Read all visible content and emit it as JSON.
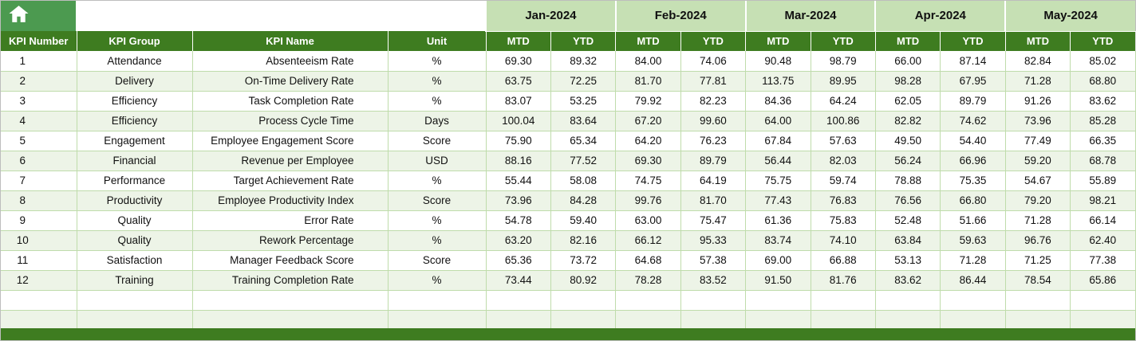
{
  "app": {
    "type": "spreadsheet-kpi-dashboard"
  },
  "colors": {
    "header_green": "#3E7C20",
    "month_green": "#C6E0B4",
    "home_green": "#4C9A50",
    "stripe_green": "#EDF4E7",
    "grid_border": "#BFDCAB",
    "text_dark": "#111111"
  },
  "header": {
    "home_icon": "home-icon",
    "months": [
      "Jan-2024",
      "Feb-2024",
      "Mar-2024",
      "Apr-2024",
      "May-2024"
    ],
    "sub_headers": [
      "MTD",
      "YTD"
    ],
    "left_columns": [
      "KPI Number",
      "KPI Group",
      "KPI Name",
      "Unit"
    ]
  },
  "rows": [
    {
      "number": "1",
      "group": "Attendance",
      "name": "Absenteeism Rate",
      "unit": "%",
      "values": [
        "69.30",
        "89.32",
        "84.00",
        "74.06",
        "90.48",
        "98.79",
        "66.00",
        "87.14",
        "82.84",
        "85.02"
      ]
    },
    {
      "number": "2",
      "group": "Delivery",
      "name": "On-Time Delivery Rate",
      "unit": "%",
      "values": [
        "63.75",
        "72.25",
        "81.70",
        "77.81",
        "113.75",
        "89.95",
        "98.28",
        "67.95",
        "71.28",
        "68.80"
      ]
    },
    {
      "number": "3",
      "group": "Efficiency",
      "name": "Task Completion Rate",
      "unit": "%",
      "values": [
        "83.07",
        "53.25",
        "79.92",
        "82.23",
        "84.36",
        "64.24",
        "62.05",
        "89.79",
        "91.26",
        "83.62"
      ]
    },
    {
      "number": "4",
      "group": "Efficiency",
      "name": "Process Cycle Time",
      "unit": "Days",
      "values": [
        "100.04",
        "83.64",
        "67.20",
        "99.60",
        "64.00",
        "100.86",
        "82.82",
        "74.62",
        "73.96",
        "85.28"
      ]
    },
    {
      "number": "5",
      "group": "Engagement",
      "name": "Employee Engagement Score",
      "unit": "Score",
      "values": [
        "75.90",
        "65.34",
        "64.20",
        "76.23",
        "67.84",
        "57.63",
        "49.50",
        "54.40",
        "77.49",
        "66.35"
      ]
    },
    {
      "number": "6",
      "group": "Financial",
      "name": "Revenue per Employee",
      "unit": "USD",
      "values": [
        "88.16",
        "77.52",
        "69.30",
        "89.79",
        "56.44",
        "82.03",
        "56.24",
        "66.96",
        "59.20",
        "68.78"
      ]
    },
    {
      "number": "7",
      "group": "Performance",
      "name": "Target Achievement Rate",
      "unit": "%",
      "values": [
        "55.44",
        "58.08",
        "74.75",
        "64.19",
        "75.75",
        "59.74",
        "78.88",
        "75.35",
        "54.67",
        "55.89"
      ]
    },
    {
      "number": "8",
      "group": "Productivity",
      "name": "Employee Productivity Index",
      "unit": "Score",
      "values": [
        "73.96",
        "84.28",
        "99.76",
        "81.70",
        "77.43",
        "76.83",
        "76.56",
        "66.80",
        "79.20",
        "98.21"
      ]
    },
    {
      "number": "9",
      "group": "Quality",
      "name": "Error Rate",
      "unit": "%",
      "values": [
        "54.78",
        "59.40",
        "63.00",
        "75.47",
        "61.36",
        "75.83",
        "52.48",
        "51.66",
        "71.28",
        "66.14"
      ]
    },
    {
      "number": "10",
      "group": "Quality",
      "name": "Rework Percentage",
      "unit": "%",
      "values": [
        "63.20",
        "82.16",
        "66.12",
        "95.33",
        "83.74",
        "74.10",
        "63.84",
        "59.63",
        "96.76",
        "62.40"
      ]
    },
    {
      "number": "11",
      "group": "Satisfaction",
      "name": "Manager Feedback Score",
      "unit": "Score",
      "values": [
        "65.36",
        "73.72",
        "64.68",
        "57.38",
        "69.00",
        "66.88",
        "53.13",
        "71.28",
        "71.25",
        "77.38"
      ]
    },
    {
      "number": "12",
      "group": "Training",
      "name": "Training Completion Rate",
      "unit": "%",
      "values": [
        "73.44",
        "80.92",
        "78.28",
        "83.52",
        "91.50",
        "81.76",
        "83.62",
        "86.44",
        "78.54",
        "65.86"
      ]
    }
  ],
  "empty_rows": 2
}
